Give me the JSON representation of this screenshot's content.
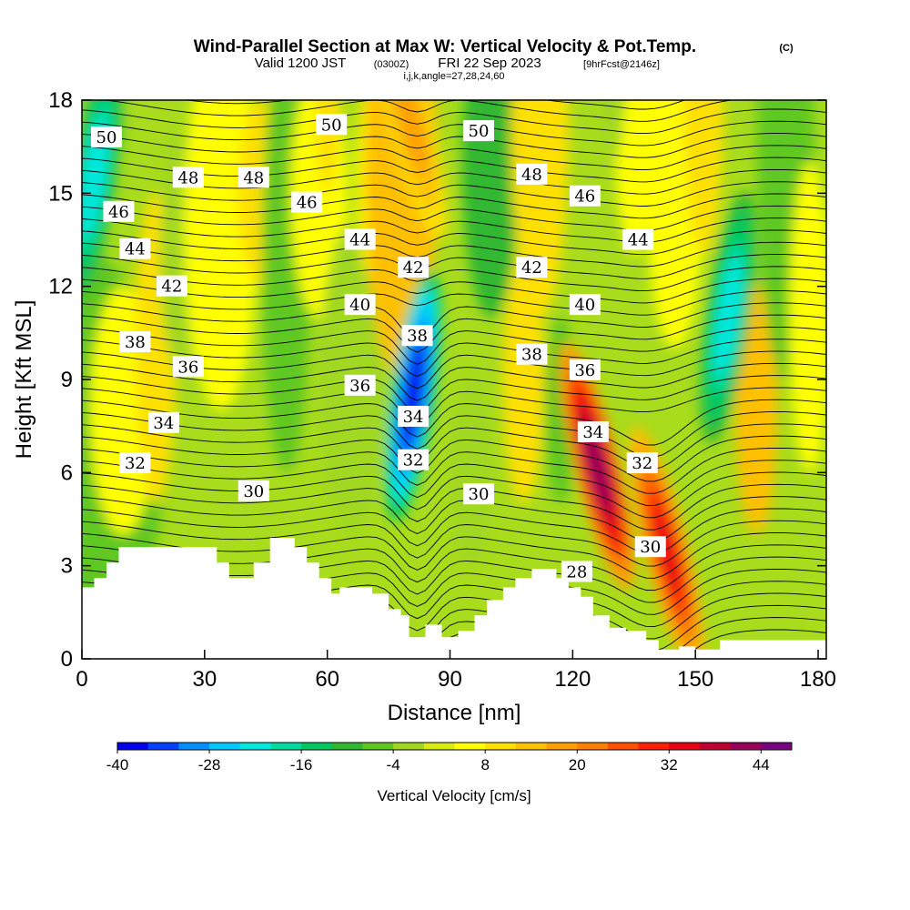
{
  "chart_data": {
    "type": "heatmap",
    "title": "Wind-Parallel Section at Max W: Vertical Velocity & Pot.Temp.",
    "copyright": "(C)",
    "subtitle_main": "Valid 1200 JST",
    "subtitle_utc": "(0300Z)",
    "subtitle_date": "FRI 22 Sep 2023",
    "subtitle_fcst": "[9hrFcst@2146z]",
    "indices": "i,j,k,angle=27,28,24,60",
    "xlabel": "Distance [nm]",
    "ylabel": "Height [Kft MSL]",
    "xlim": [
      0,
      182
    ],
    "ylim": [
      0,
      18
    ],
    "x_ticks": [
      "0",
      "30",
      "60",
      "90",
      "120",
      "150",
      "180"
    ],
    "y_ticks": [
      "0",
      "3",
      "6",
      "9",
      "12",
      "15",
      "18"
    ],
    "colorbar": {
      "label": "Vertical Velocity [cm/s]",
      "levels": [
        -40,
        -36,
        -32,
        -28,
        -24,
        -20,
        -16,
        -12,
        -8,
        -4,
        0,
        4,
        8,
        12,
        16,
        20,
        24,
        28,
        32,
        36,
        40,
        44,
        48
      ],
      "tick_labels": [
        "-40",
        "-28",
        "-16",
        "-4",
        "8",
        "20",
        "32",
        "44"
      ],
      "colors": [
        "#0000ee",
        "#0040ff",
        "#0090ff",
        "#00c8ff",
        "#00e8e0",
        "#00dca0",
        "#00c860",
        "#30b830",
        "#60c820",
        "#a0d820",
        "#d8ec10",
        "#ffff00",
        "#ffe000",
        "#ffc000",
        "#ffa000",
        "#ff8000",
        "#ff5000",
        "#ff2000",
        "#e80010",
        "#c00030",
        "#98005a",
        "#7a0082"
      ]
    },
    "updraft_cores": [
      {
        "x": 126,
        "z": 6.2,
        "w": 44
      },
      {
        "x": 143,
        "z": 3.5,
        "w": 36
      },
      {
        "x": 80,
        "z": 17.5,
        "w": 20
      }
    ],
    "downdraft_cores": [
      {
        "x": 81,
        "z": 8.5,
        "w": -38
      },
      {
        "x": 158,
        "z": 11.0,
        "w": -24
      },
      {
        "x": 3,
        "z": 15.5,
        "w": -24
      }
    ],
    "theta_contours": {
      "units": "C",
      "levels": [
        28,
        30,
        32,
        34,
        36,
        38,
        40,
        42,
        44,
        46,
        48,
        50
      ],
      "labels": [
        {
          "text": "50",
          "x": 6,
          "z": 16.8
        },
        {
          "text": "50",
          "x": 61,
          "z": 17.2
        },
        {
          "text": "50",
          "x": 97,
          "z": 17.0
        },
        {
          "text": "48",
          "x": 26,
          "z": 15.5
        },
        {
          "text": "48",
          "x": 42,
          "z": 15.5
        },
        {
          "text": "48",
          "x": 110,
          "z": 15.6
        },
        {
          "text": "46",
          "x": 9,
          "z": 14.4
        },
        {
          "text": "46",
          "x": 55,
          "z": 14.7
        },
        {
          "text": "46",
          "x": 123,
          "z": 14.9
        },
        {
          "text": "44",
          "x": 13,
          "z": 13.2
        },
        {
          "text": "44",
          "x": 68,
          "z": 13.5
        },
        {
          "text": "44",
          "x": 136,
          "z": 13.5
        },
        {
          "text": "42",
          "x": 22,
          "z": 12.0
        },
        {
          "text": "42",
          "x": 81,
          "z": 12.6
        },
        {
          "text": "42",
          "x": 110,
          "z": 12.6
        },
        {
          "text": "40",
          "x": 68,
          "z": 11.4
        },
        {
          "text": "40",
          "x": 123,
          "z": 11.4
        },
        {
          "text": "38",
          "x": 13,
          "z": 10.2
        },
        {
          "text": "38",
          "x": 82,
          "z": 10.4
        },
        {
          "text": "38",
          "x": 110,
          "z": 9.8
        },
        {
          "text": "36",
          "x": 26,
          "z": 9.4
        },
        {
          "text": "36",
          "x": 68,
          "z": 8.8
        },
        {
          "text": "36",
          "x": 123,
          "z": 9.3
        },
        {
          "text": "34",
          "x": 20,
          "z": 7.6
        },
        {
          "text": "34",
          "x": 81,
          "z": 7.8
        },
        {
          "text": "34",
          "x": 125,
          "z": 7.3
        },
        {
          "text": "32",
          "x": 13,
          "z": 6.3
        },
        {
          "text": "32",
          "x": 81,
          "z": 6.4
        },
        {
          "text": "32",
          "x": 137,
          "z": 6.3
        },
        {
          "text": "30",
          "x": 42,
          "z": 5.4
        },
        {
          "text": "30",
          "x": 97,
          "z": 5.3
        },
        {
          "text": "30",
          "x": 139,
          "z": 3.6
        },
        {
          "text": "28",
          "x": 121,
          "z": 2.8
        }
      ]
    },
    "terrain": [
      [
        0,
        2.3
      ],
      [
        3,
        2.3
      ],
      [
        3,
        2.6
      ],
      [
        6,
        2.6
      ],
      [
        6,
        3.1
      ],
      [
        9,
        3.1
      ],
      [
        9,
        3.6
      ],
      [
        33,
        3.6
      ],
      [
        33,
        3.1
      ],
      [
        36,
        3.1
      ],
      [
        36,
        2.6
      ],
      [
        42,
        2.6
      ],
      [
        42,
        3.1
      ],
      [
        46,
        3.1
      ],
      [
        46,
        3.9
      ],
      [
        52,
        3.9
      ],
      [
        52,
        3.6
      ],
      [
        55,
        3.6
      ],
      [
        55,
        3.1
      ],
      [
        58,
        3.1
      ],
      [
        58,
        2.6
      ],
      [
        61,
        2.6
      ],
      [
        61,
        2.1
      ],
      [
        63,
        2.1
      ],
      [
        63,
        2.3
      ],
      [
        71,
        2.3
      ],
      [
        71,
        2.1
      ],
      [
        75,
        2.1
      ],
      [
        75,
        1.6
      ],
      [
        78,
        1.6
      ],
      [
        78,
        1.4
      ],
      [
        80,
        1.4
      ],
      [
        80,
        0.7
      ],
      [
        84,
        0.7
      ],
      [
        84,
        1.1
      ],
      [
        88,
        1.1
      ],
      [
        88,
        0.7
      ],
      [
        92,
        0.7
      ],
      [
        92,
        0.9
      ],
      [
        96,
        0.9
      ],
      [
        96,
        1.4
      ],
      [
        99,
        1.4
      ],
      [
        99,
        1.9
      ],
      [
        103,
        1.9
      ],
      [
        103,
        2.3
      ],
      [
        106,
        2.3
      ],
      [
        106,
        2.6
      ],
      [
        110,
        2.6
      ],
      [
        110,
        2.9
      ],
      [
        116,
        2.9
      ],
      [
        116,
        2.6
      ],
      [
        119,
        2.6
      ],
      [
        119,
        2.3
      ],
      [
        122,
        2.3
      ],
      [
        122,
        2.0
      ],
      [
        125,
        2.0
      ],
      [
        125,
        1.4
      ],
      [
        129,
        1.4
      ],
      [
        129,
        1.0
      ],
      [
        133,
        1.0
      ],
      [
        133,
        0.9
      ],
      [
        138,
        0.9
      ],
      [
        138,
        0.6
      ],
      [
        141,
        0.6
      ],
      [
        141,
        0.3
      ],
      [
        146,
        0.3
      ],
      [
        146,
        0.4
      ],
      [
        150,
        0.4
      ],
      [
        150,
        0.3
      ],
      [
        156,
        0.3
      ],
      [
        156,
        0.6
      ],
      [
        182,
        0.6
      ]
    ]
  }
}
